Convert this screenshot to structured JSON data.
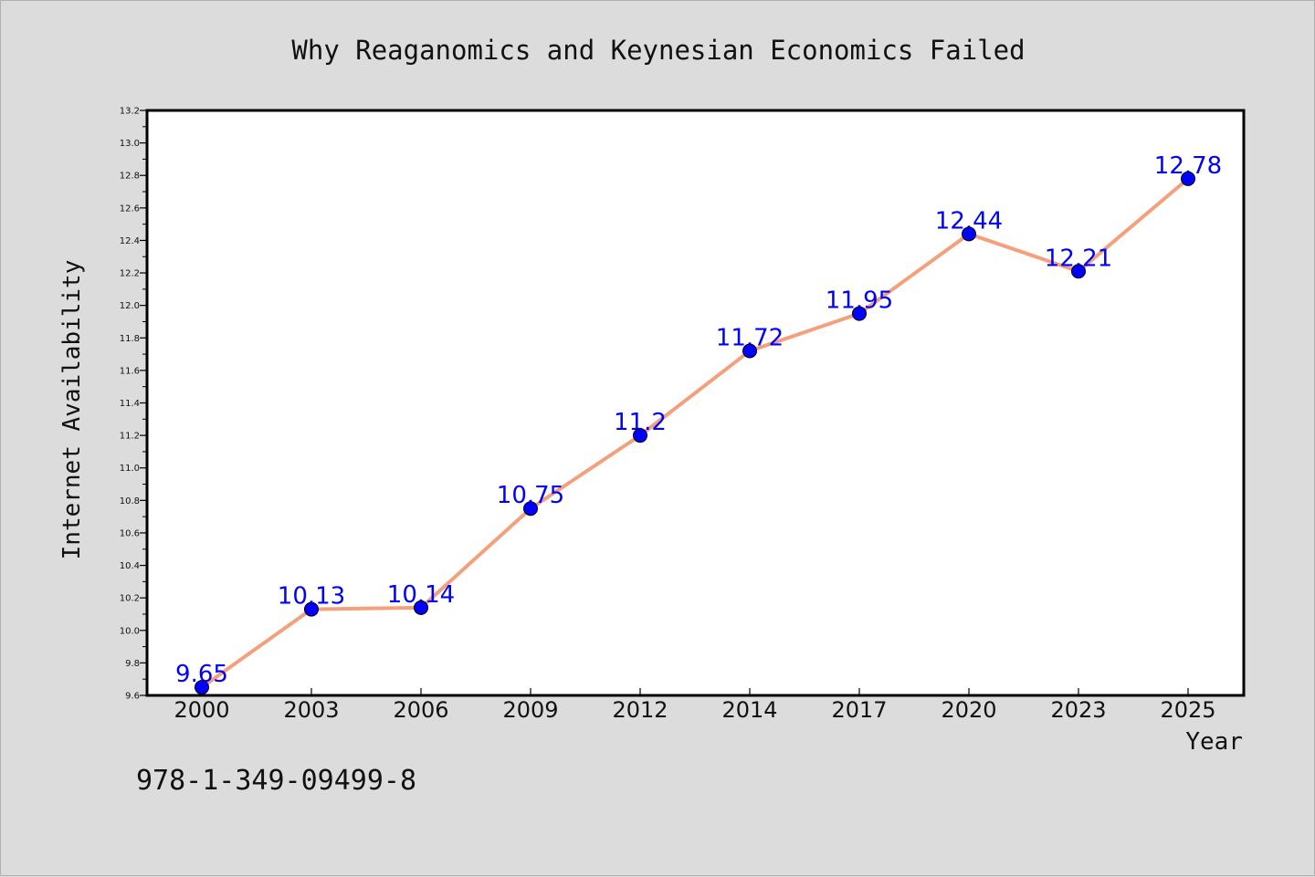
{
  "chart_data": {
    "type": "line",
    "title": "Why Reaganomics and Keynesian Economics Failed",
    "xlabel": "Year",
    "ylabel": "Internet Availability",
    "categories": [
      "2000",
      "2003",
      "2006",
      "2009",
      "2012",
      "2014",
      "2017",
      "2020",
      "2023",
      "2025"
    ],
    "series": [
      {
        "values": [
          9.65,
          10.13,
          10.14,
          10.75,
          11.2,
          11.72,
          11.95,
          12.44,
          12.21,
          12.78
        ],
        "data_labels": [
          "9.65",
          "10.13",
          "10.14",
          "10.75",
          "11.2",
          "11.72",
          "11.95",
          "12.44",
          "12.21",
          "12.78"
        ],
        "line_color": "#f4a07c",
        "marker_color": "#0000ff"
      }
    ],
    "ylim": [
      9.6,
      13.2
    ],
    "yticks": [
      "9.6",
      "9.8",
      "10.0",
      "10.2",
      "10.4",
      "10.6",
      "10.8",
      "11.0",
      "11.2",
      "11.4",
      "11.6",
      "11.8",
      "12.0",
      "12.2",
      "12.4",
      "12.6",
      "12.8",
      "13.0",
      "13.2"
    ],
    "grid": false,
    "legend": "none"
  },
  "footer": {
    "isbn": "978-1-349-09499-8"
  },
  "colors": {
    "background": "#dcdcdc",
    "plot_background": "#ffffff",
    "label_color": "#0000ff"
  }
}
